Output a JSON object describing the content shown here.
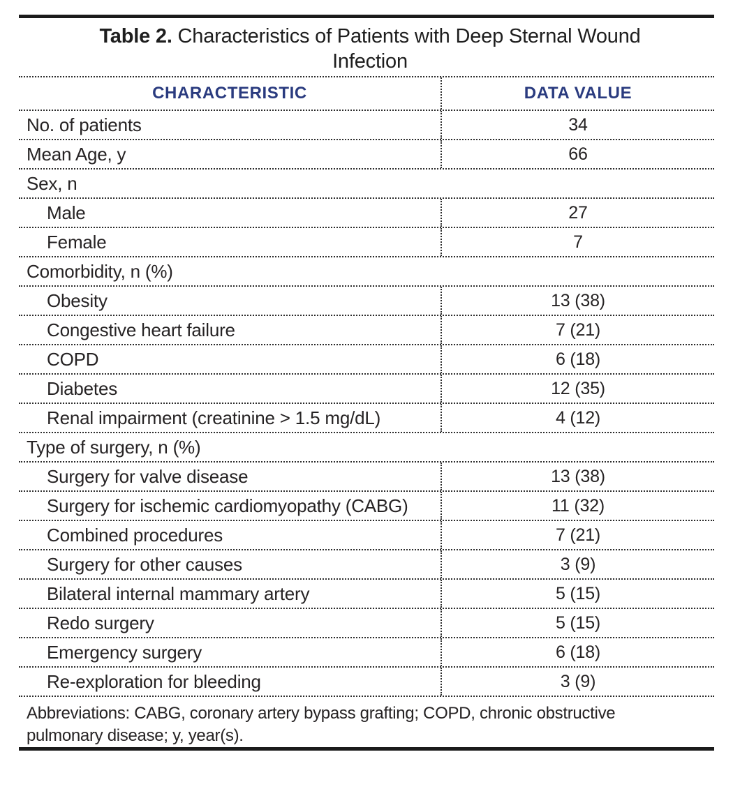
{
  "title": {
    "prefix": "Table 2.",
    "rest": "Characteristics of Patients with Deep Sternal Wound Infection"
  },
  "header": {
    "characteristic": "CHARACTERISTIC",
    "value": "DATA VALUE"
  },
  "rows": [
    {
      "label": "No. of patients",
      "value": "34"
    },
    {
      "label": "Mean Age, y",
      "value": "66"
    },
    {
      "label": "Sex, n",
      "value": ""
    },
    {
      "label": "Male",
      "value": "27"
    },
    {
      "label": "Female",
      "value": "7"
    },
    {
      "label": "Comorbidity, n (%)",
      "value": ""
    },
    {
      "label": "Obesity",
      "value": "13 (38)"
    },
    {
      "label": "Congestive heart failure",
      "value": "7 (21)"
    },
    {
      "label": "COPD",
      "value": "6 (18)"
    },
    {
      "label": "Diabetes",
      "value": "12 (35)"
    },
    {
      "label": "Renal impairment (creatinine > 1.5 mg/dL)",
      "value": "4 (12)"
    },
    {
      "label": "Type of surgery, n (%)",
      "value": ""
    },
    {
      "label": "Surgery for valve disease",
      "value": "13 (38)"
    },
    {
      "label": "Surgery for ischemic cardiomyopathy (CABG)",
      "value": "11 (32)"
    },
    {
      "label": "Combined procedures",
      "value": "7 (21)"
    },
    {
      "label": "Surgery for other causes",
      "value": "3 (9)"
    },
    {
      "label": "Bilateral internal mammary artery",
      "value": "5 (15)"
    },
    {
      "label": "Redo surgery",
      "value": "5 (15)"
    },
    {
      "label": "Emergency surgery",
      "value": "6 (18)"
    },
    {
      "label": "Re-exploration for bleeding",
      "value": "3 (9)"
    }
  ],
  "footnote": "Abbreviations: CABG, coronary artery bypass grafting; COPD, chronic obstructive pulmonary disease; y, year(s).",
  "colors": {
    "header_text": "#2A3B7F",
    "body_text": "#262324",
    "rule": "#1B1B1B",
    "dotted_border": "#2C2C2C",
    "background": "#FFFFFF"
  },
  "chart_data": {
    "type": "table",
    "title": "Table 2. Characteristics of Patients with Deep Sternal Wound Infection",
    "columns": [
      "CHARACTERISTIC",
      "DATA VALUE"
    ],
    "rows": [
      [
        "No. of patients",
        "34"
      ],
      [
        "Mean Age, y",
        "66"
      ],
      [
        "Sex, n",
        ""
      ],
      [
        "Male",
        "27"
      ],
      [
        "Female",
        "7"
      ],
      [
        "Comorbidity, n (%)",
        ""
      ],
      [
        "Obesity",
        "13 (38)"
      ],
      [
        "Congestive heart failure",
        "7 (21)"
      ],
      [
        "COPD",
        "6 (18)"
      ],
      [
        "Diabetes",
        "12 (35)"
      ],
      [
        "Renal impairment (creatinine > 1.5 mg/dL)",
        "4 (12)"
      ],
      [
        "Type of surgery, n (%)",
        ""
      ],
      [
        "Surgery for valve disease",
        "13 (38)"
      ],
      [
        "Surgery for ischemic cardiomyopathy (CABG)",
        "11 (32)"
      ],
      [
        "Combined procedures",
        "7 (21)"
      ],
      [
        "Surgery for other causes",
        "3 (9)"
      ],
      [
        "Bilateral internal mammary artery",
        "5 (15)"
      ],
      [
        "Redo surgery",
        "5 (15)"
      ],
      [
        "Emergency surgery",
        "6 (18)"
      ],
      [
        "Re-exploration for bleeding",
        "3 (9)"
      ]
    ],
    "footnote": "Abbreviations: CABG, coronary artery bypass grafting; COPD, chronic obstructive pulmonary disease; y, year(s)."
  }
}
